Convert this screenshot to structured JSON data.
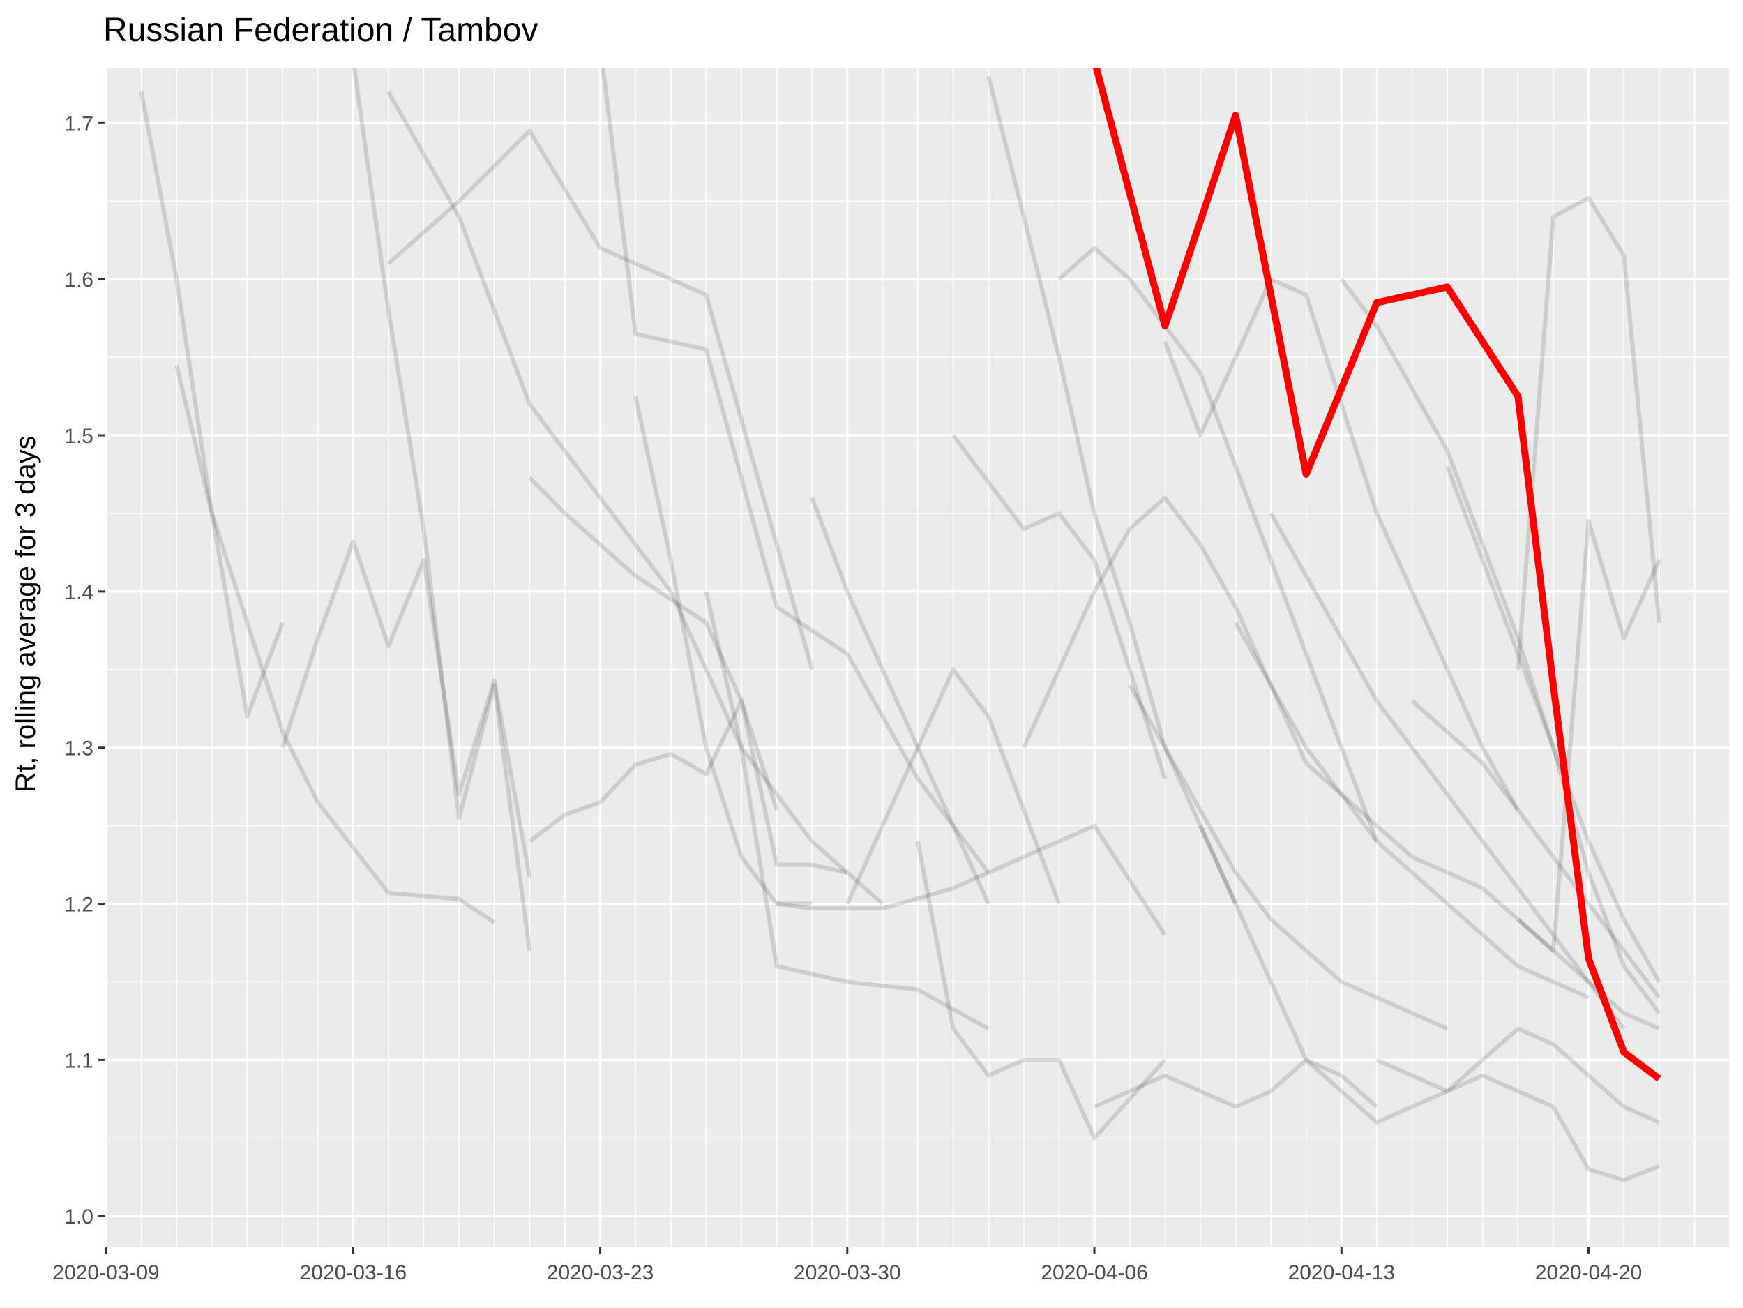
{
  "chart_data": {
    "type": "line",
    "title": "Russian Federation / Tambov",
    "xlabel": "",
    "ylabel": "Rt, rolling average for 3 days",
    "xlim": [
      "2020-03-09",
      "2020-04-24"
    ],
    "ylim": [
      0.98,
      1.735
    ],
    "x_ticks": [
      "2020-03-09",
      "2020-03-16",
      "2020-03-23",
      "2020-03-30",
      "2020-04-06",
      "2020-04-13",
      "2020-04-20"
    ],
    "y_ticks": [
      1.0,
      1.1,
      1.2,
      1.3,
      1.4,
      1.5,
      1.6,
      1.7
    ],
    "grid": true,
    "legend": "none",
    "colors": {
      "panel": "#ebebeb",
      "grid": "#ffffff",
      "highlight": "#ff0000",
      "background_series": "#000000"
    },
    "highlight_series": {
      "x": [
        "2020-04-05",
        "2020-04-06",
        "2020-04-07",
        "2020-04-08",
        "2020-04-09",
        "2020-04-10",
        "2020-04-11",
        "2020-04-12",
        "2020-04-13",
        "2020-04-14",
        "2020-04-15",
        "2020-04-16",
        "2020-04-17",
        "2020-04-18",
        "2020-04-19",
        "2020-04-20",
        "2020-04-21",
        "2020-04-22"
      ],
      "values": [
        1.79,
        1.74,
        1.655,
        1.57,
        1.637,
        1.705,
        1.59,
        1.475,
        1.53,
        1.585,
        1.59,
        1.595,
        1.56,
        1.525,
        1.34,
        1.165,
        1.105,
        1.088
      ]
    },
    "background_series": [
      {
        "x": [
          "2020-03-10",
          "2020-03-11",
          "2020-03-12",
          "2020-03-13",
          "2020-03-14"
        ],
        "values": [
          1.72,
          1.6,
          1.45,
          1.32,
          1.38
        ]
      },
      {
        "x": [
          "2020-03-11",
          "2020-03-12",
          "2020-03-14",
          "2020-03-15",
          "2020-03-17",
          "2020-03-19",
          "2020-03-20"
        ],
        "values": [
          1.545,
          1.45,
          1.31,
          1.265,
          1.207,
          1.203,
          1.188
        ]
      },
      {
        "x": [
          "2020-03-14",
          "2020-03-15",
          "2020-03-16",
          "2020-03-17",
          "2020-03-18",
          "2020-03-19",
          "2020-03-20",
          "2020-03-21"
        ],
        "values": [
          1.3,
          1.37,
          1.432,
          1.365,
          1.42,
          1.27,
          1.343,
          1.217
        ]
      },
      {
        "x": [
          "2020-03-16",
          "2020-03-17",
          "2020-03-18",
          "2020-03-19",
          "2020-03-20",
          "2020-03-21"
        ],
        "values": [
          1.74,
          1.58,
          1.44,
          1.255,
          1.34,
          1.17
        ]
      },
      {
        "x": [
          "2020-03-17",
          "2020-03-19",
          "2020-03-21",
          "2020-03-23",
          "2020-03-26",
          "2020-03-28",
          "2020-03-29"
        ],
        "values": [
          1.61,
          1.65,
          1.695,
          1.62,
          1.59,
          1.43,
          1.35
        ]
      },
      {
        "x": [
          "2020-03-17",
          "2020-03-19",
          "2020-03-21",
          "2020-03-23",
          "2020-03-25",
          "2020-03-27",
          "2020-03-29",
          "2020-03-31"
        ],
        "values": [
          1.72,
          1.64,
          1.52,
          1.46,
          1.4,
          1.3,
          1.24,
          1.2
        ]
      },
      {
        "x": [
          "2020-03-21",
          "2020-03-22",
          "2020-03-24",
          "2020-03-26",
          "2020-03-27",
          "2020-03-28"
        ],
        "values": [
          1.473,
          1.45,
          1.41,
          1.38,
          1.33,
          1.26
        ]
      },
      {
        "x": [
          "2020-03-21",
          "2020-03-22",
          "2020-03-23",
          "2020-03-24",
          "2020-03-25",
          "2020-03-26",
          "2020-03-27",
          "2020-03-28",
          "2020-03-29",
          "2020-03-30"
        ],
        "values": [
          1.24,
          1.257,
          1.265,
          1.289,
          1.296,
          1.283,
          1.33,
          1.225,
          1.225,
          1.22
        ]
      },
      {
        "x": [
          "2020-03-23",
          "2020-03-24",
          "2020-03-26",
          "2020-03-28",
          "2020-03-30",
          "2020-04-01",
          "2020-04-03"
        ],
        "values": [
          1.75,
          1.565,
          1.555,
          1.39,
          1.36,
          1.28,
          1.22
        ]
      },
      {
        "x": [
          "2020-03-24",
          "2020-03-25",
          "2020-03-26",
          "2020-03-27",
          "2020-03-28",
          "2020-03-29"
        ],
        "values": [
          1.525,
          1.42,
          1.3,
          1.23,
          1.2,
          1.2
        ]
      },
      {
        "x": [
          "2020-03-26",
          "2020-03-27",
          "2020-03-28",
          "2020-03-30",
          "2020-04-01",
          "2020-04-03"
        ],
        "values": [
          1.4,
          1.3,
          1.16,
          1.15,
          1.145,
          1.12
        ]
      },
      {
        "x": [
          "2020-03-28",
          "2020-03-29",
          "2020-03-31",
          "2020-04-02",
          "2020-04-04",
          "2020-04-06",
          "2020-04-08"
        ],
        "values": [
          1.2,
          1.197,
          1.197,
          1.21,
          1.23,
          1.25,
          1.18
        ]
      },
      {
        "x": [
          "2020-03-29",
          "2020-03-30",
          "2020-03-31",
          "2020-04-01",
          "2020-04-02",
          "2020-04-03"
        ],
        "values": [
          1.46,
          1.4,
          1.35,
          1.3,
          1.25,
          1.2
        ]
      },
      {
        "x": [
          "2020-03-30",
          "2020-03-31",
          "2020-04-01",
          "2020-04-02",
          "2020-04-03",
          "2020-04-04",
          "2020-04-05"
        ],
        "values": [
          1.2,
          1.25,
          1.3,
          1.35,
          1.32,
          1.26,
          1.2
        ]
      },
      {
        "x": [
          "2020-04-01",
          "2020-04-02",
          "2020-04-03",
          "2020-04-04",
          "2020-04-05",
          "2020-04-06",
          "2020-04-08"
        ],
        "values": [
          1.24,
          1.12,
          1.09,
          1.1,
          1.1,
          1.05,
          1.1
        ]
      },
      {
        "x": [
          "2020-04-02",
          "2020-04-03",
          "2020-04-04",
          "2020-04-05",
          "2020-04-06",
          "2020-04-07",
          "2020-04-08"
        ],
        "values": [
          1.5,
          1.47,
          1.44,
          1.45,
          1.42,
          1.35,
          1.28
        ]
      },
      {
        "x": [
          "2020-04-03",
          "2020-04-04",
          "2020-04-05",
          "2020-04-06",
          "2020-04-07",
          "2020-04-08",
          "2020-04-09",
          "2020-04-10"
        ],
        "values": [
          1.73,
          1.64,
          1.55,
          1.45,
          1.38,
          1.3,
          1.25,
          1.2
        ]
      },
      {
        "x": [
          "2020-04-04",
          "2020-04-05",
          "2020-04-06",
          "2020-04-07",
          "2020-04-08",
          "2020-04-09",
          "2020-04-10",
          "2020-04-11",
          "2020-04-12"
        ],
        "values": [
          1.3,
          1.35,
          1.4,
          1.44,
          1.46,
          1.43,
          1.39,
          1.34,
          1.29
        ]
      },
      {
        "x": [
          "2020-04-05",
          "2020-04-06",
          "2020-04-07",
          "2020-04-08",
          "2020-04-09",
          "2020-04-10",
          "2020-04-11",
          "2020-04-12",
          "2020-04-13",
          "2020-04-14"
        ],
        "values": [
          1.6,
          1.62,
          1.6,
          1.57,
          1.54,
          1.48,
          1.42,
          1.36,
          1.3,
          1.24
        ]
      },
      {
        "x": [
          "2020-04-06",
          "2020-04-07",
          "2020-04-08",
          "2020-04-09",
          "2020-04-10",
          "2020-04-11",
          "2020-04-12",
          "2020-04-13",
          "2020-04-14"
        ],
        "values": [
          1.07,
          1.08,
          1.09,
          1.08,
          1.07,
          1.08,
          1.1,
          1.09,
          1.07
        ]
      },
      {
        "x": [
          "2020-04-07",
          "2020-04-08",
          "2020-04-09",
          "2020-04-10",
          "2020-04-11",
          "2020-04-12",
          "2020-04-13",
          "2020-04-14",
          "2020-04-15",
          "2020-04-16"
        ],
        "values": [
          1.34,
          1.3,
          1.26,
          1.22,
          1.19,
          1.17,
          1.15,
          1.14,
          1.13,
          1.12
        ]
      },
      {
        "x": [
          "2020-04-08",
          "2020-04-09",
          "2020-04-10",
          "2020-04-11",
          "2020-04-12",
          "2020-04-13",
          "2020-04-14",
          "2020-04-15",
          "2020-04-16",
          "2020-04-17",
          "2020-04-18"
        ],
        "values": [
          1.56,
          1.5,
          1.55,
          1.6,
          1.59,
          1.52,
          1.45,
          1.4,
          1.35,
          1.3,
          1.26
        ]
      },
      {
        "x": [
          "2020-04-09",
          "2020-04-10",
          "2020-04-11",
          "2020-04-12",
          "2020-04-13",
          "2020-04-14",
          "2020-04-15",
          "2020-04-16",
          "2020-04-17",
          "2020-04-18",
          "2020-04-19"
        ],
        "values": [
          1.25,
          1.2,
          1.15,
          1.1,
          1.08,
          1.06,
          1.07,
          1.08,
          1.09,
          1.08,
          1.07
        ]
      },
      {
        "x": [
          "2020-04-10",
          "2020-04-11",
          "2020-04-12",
          "2020-04-13",
          "2020-04-14",
          "2020-04-15",
          "2020-04-16",
          "2020-04-17",
          "2020-04-18",
          "2020-04-19",
          "2020-04-20"
        ],
        "values": [
          1.38,
          1.34,
          1.3,
          1.27,
          1.24,
          1.22,
          1.2,
          1.18,
          1.16,
          1.15,
          1.14
        ]
      },
      {
        "x": [
          "2020-04-11",
          "2020-04-12",
          "2020-04-13",
          "2020-04-14",
          "2020-04-15",
          "2020-04-16",
          "2020-04-17",
          "2020-04-18",
          "2020-04-19",
          "2020-04-20",
          "2020-04-21"
        ],
        "values": [
          1.45,
          1.41,
          1.37,
          1.33,
          1.3,
          1.27,
          1.24,
          1.21,
          1.18,
          1.15,
          1.12
        ]
      },
      {
        "x": [
          "2020-04-12",
          "2020-04-13",
          "2020-04-14",
          "2020-04-15",
          "2020-04-16",
          "2020-04-17",
          "2020-04-18",
          "2020-04-19",
          "2020-04-20",
          "2020-04-21",
          "2020-04-22"
        ],
        "values": [
          1.29,
          1.27,
          1.25,
          1.23,
          1.22,
          1.21,
          1.19,
          1.17,
          1.15,
          1.13,
          1.12
        ]
      },
      {
        "x": [
          "2020-04-13",
          "2020-04-14",
          "2020-04-15",
          "2020-04-16",
          "2020-04-17",
          "2020-04-18",
          "2020-04-19",
          "2020-04-20",
          "2020-04-21",
          "2020-04-22"
        ],
        "values": [
          1.6,
          1.57,
          1.53,
          1.49,
          1.43,
          1.37,
          1.3,
          1.22,
          1.16,
          1.13
        ]
      },
      {
        "x": [
          "2020-04-14",
          "2020-04-15",
          "2020-04-16",
          "2020-04-17",
          "2020-04-18",
          "2020-04-19",
          "2020-04-20",
          "2020-04-21",
          "2020-04-22"
        ],
        "values": [
          1.1,
          1.09,
          1.08,
          1.1,
          1.12,
          1.11,
          1.09,
          1.07,
          1.06
        ]
      },
      {
        "x": [
          "2020-04-15",
          "2020-04-16",
          "2020-04-17",
          "2020-04-18",
          "2020-04-19",
          "2020-04-20",
          "2020-04-21",
          "2020-04-22"
        ],
        "values": [
          1.33,
          1.31,
          1.29,
          1.26,
          1.23,
          1.2,
          1.17,
          1.14
        ]
      },
      {
        "x": [
          "2020-04-16",
          "2020-04-17",
          "2020-04-18",
          "2020-04-19",
          "2020-04-20",
          "2020-04-21",
          "2020-04-22"
        ],
        "values": [
          1.48,
          1.42,
          1.36,
          1.3,
          1.24,
          1.19,
          1.15
        ]
      },
      {
        "x": [
          "2020-04-18",
          "2020-04-19",
          "2020-04-20",
          "2020-04-21",
          "2020-04-22"
        ],
        "values": [
          1.35,
          1.64,
          1.652,
          1.615,
          1.38
        ]
      },
      {
        "x": [
          "2020-04-18",
          "2020-04-19",
          "2020-04-20",
          "2020-04-21",
          "2020-04-22"
        ],
        "values": [
          1.19,
          1.17,
          1.445,
          1.37,
          1.42
        ]
      },
      {
        "x": [
          "2020-04-19",
          "2020-04-20",
          "2020-04-21",
          "2020-04-22"
        ],
        "values": [
          1.07,
          1.03,
          1.023,
          1.032
        ]
      }
    ]
  }
}
